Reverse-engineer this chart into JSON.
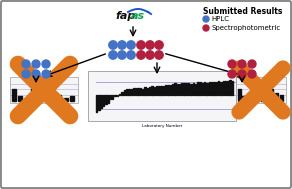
{
  "blue_color": "#4472C4",
  "red_color": "#B22040",
  "orange_color": "#E07820",
  "bg_color": "#DCDCDC",
  "border_color": "#7a7a7a",
  "legend_title": "Submitted Results",
  "legend_items": [
    "HPLC",
    "Spectrophotometric"
  ],
  "chart_bar_color": "#111111",
  "fapas_black": "#111111",
  "fapas_green": "#12a050",
  "fapas_blue_wave": "#1a55cc",
  "white": "#ffffff",
  "chart_line_color": "#aaaacc",
  "chart_bg": "#f5f5f8"
}
